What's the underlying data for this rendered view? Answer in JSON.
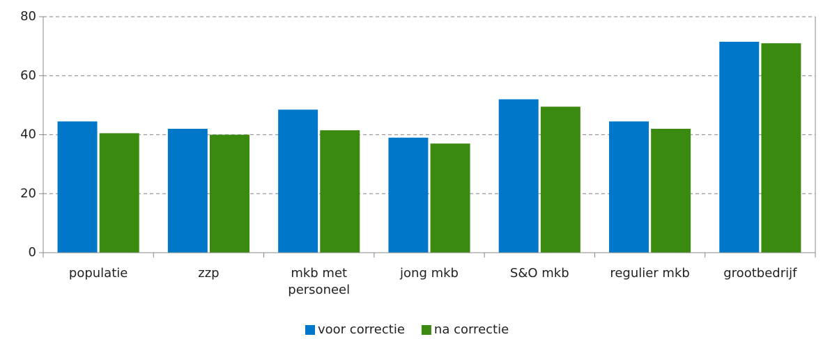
{
  "chart_data": {
    "type": "bar",
    "categories": [
      "populatie",
      "zzp",
      "mkb met personeel",
      "jong mkb",
      "S&O mkb",
      "regulier mkb",
      "grootbedrijf"
    ],
    "series": [
      {
        "name": "voor correctie",
        "color": "#0077c8",
        "values": [
          44.5,
          42,
          48.5,
          39,
          52,
          44.5,
          71.5
        ]
      },
      {
        "name": "na correctie",
        "color": "#3a8a10",
        "values": [
          40.5,
          40,
          41.5,
          37,
          49.5,
          42,
          71
        ]
      }
    ],
    "ylim": [
      0,
      80
    ],
    "yticks": [
      0,
      20,
      40,
      60,
      80
    ],
    "grid": true,
    "legend": "bottom"
  }
}
